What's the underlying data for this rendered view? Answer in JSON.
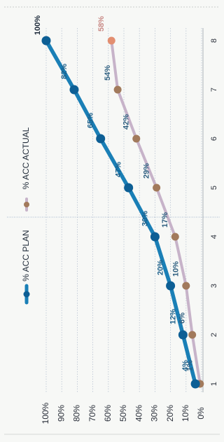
{
  "chart_data": {
    "type": "line",
    "orientation": "rotated-90-clockwise",
    "x": [
      1,
      2,
      3,
      4,
      5,
      6,
      7,
      8
    ],
    "series": [
      {
        "name": "% ACC PLAN",
        "values": [
          4,
          12,
          20,
          30,
          47,
          65,
          82,
          100
        ],
        "labels": [
          "4%",
          "12%",
          "20%",
          "30%",
          "47%",
          "65%",
          "82%",
          "100%"
        ],
        "color": "#1a7fb6",
        "marker_color": "#0d5f95"
      },
      {
        "name": "% ACC ACTUAL",
        "values": [
          1,
          6,
          10,
          17,
          29,
          42,
          54,
          58
        ],
        "labels": [
          "1%",
          "6%",
          "10%",
          "17%",
          "29%",
          "42%",
          "54%",
          "58%"
        ],
        "color": "#c7b3c9",
        "marker_color": "#a27a5c",
        "last_marker_color": "#e38e70"
      }
    ],
    "y_ticks": [
      "0%",
      "10%",
      "20%",
      "30%",
      "40%",
      "50%",
      "60%",
      "70%",
      "80%",
      "90%",
      "100%"
    ],
    "ylim": [
      0,
      100
    ],
    "grid": true,
    "legend": "top"
  }
}
